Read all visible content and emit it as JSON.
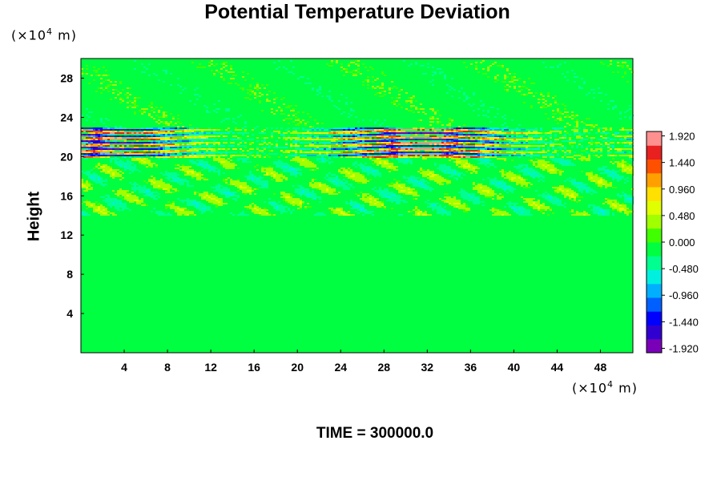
{
  "chart_data": {
    "type": "heatmap",
    "title": "Potential Temperature Deviation",
    "ylabel": "Height",
    "xlabel": "",
    "x_unit_prefix": "(×10",
    "x_unit_exp": "4",
    "x_unit_suffix": " m)",
    "y_unit_prefix": "(×10",
    "y_unit_exp": "4",
    "y_unit_suffix": " m)",
    "footer": "TIME = 300000.0",
    "xlim": [
      0,
      51
    ],
    "ylim": [
      0,
      30
    ],
    "x_ticks": [
      4,
      8,
      12,
      16,
      20,
      24,
      28,
      32,
      36,
      40,
      44,
      48
    ],
    "y_ticks": [
      4,
      8,
      12,
      16,
      20,
      24,
      28
    ],
    "colorbar": {
      "range": [
        -2.0,
        2.0
      ],
      "tick_labels": [
        "1.920",
        "1.440",
        "0.960",
        "0.480",
        "0.000",
        "-0.480",
        "-0.960",
        "-1.440",
        "-1.920"
      ],
      "tick_values": [
        1.92,
        1.44,
        0.96,
        0.48,
        0.0,
        -0.48,
        -0.96,
        -1.44,
        -1.92
      ],
      "colors": [
        "#7a00b8",
        "#3000d0",
        "#0000ff",
        "#0060ff",
        "#00b0ff",
        "#00f0e0",
        "#00ff90",
        "#00ff40",
        "#40ff00",
        "#a0ff00",
        "#e0ff00",
        "#ffe000",
        "#ffa000",
        "#ff5000",
        "#e82020",
        "#ff9090"
      ]
    },
    "features": [
      {
        "name": "strong oscillation band",
        "y_range": [
          20.0,
          23.0
        ],
        "amplitude": 1.92
      },
      {
        "name": "weaker wave region",
        "y_range": [
          14.0,
          20.0
        ],
        "amplitude": 0.5
      },
      {
        "name": "lower background",
        "y_range": [
          0.0,
          14.0
        ],
        "amplitude": 0.15
      },
      {
        "name": "upper background",
        "y_range": [
          23.0,
          30.0
        ],
        "amplitude": 0.3
      }
    ]
  }
}
